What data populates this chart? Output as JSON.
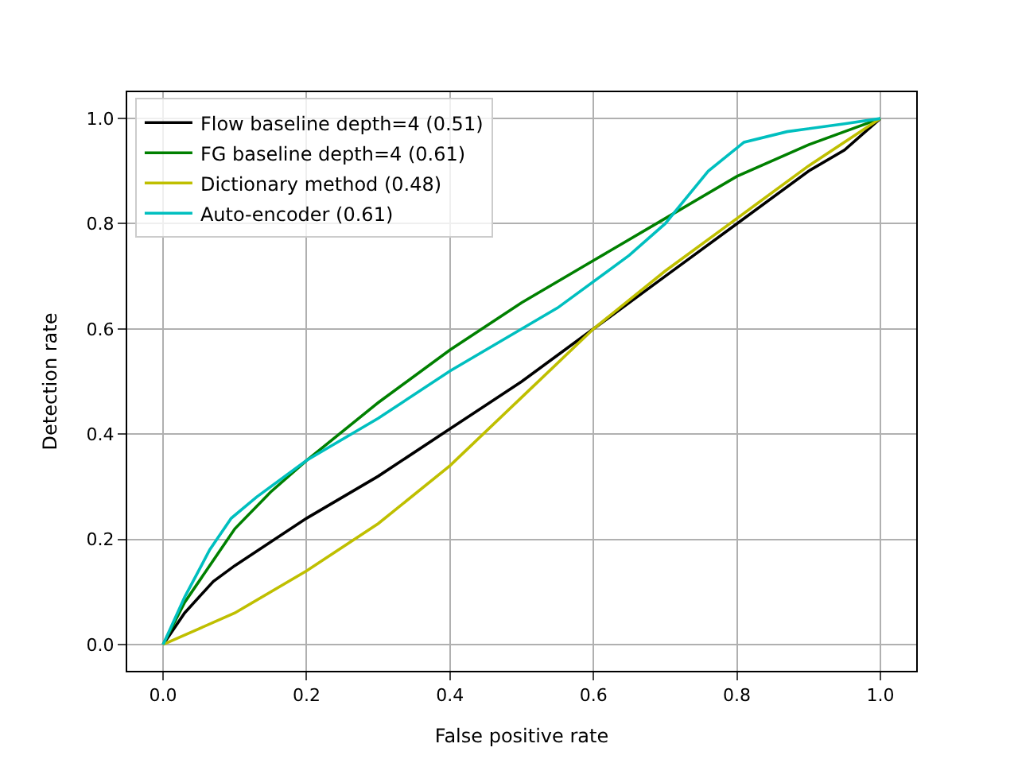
{
  "chart_data": {
    "type": "line",
    "xlabel": "False positive rate",
    "ylabel": "Detection rate",
    "xlim": [
      -0.05,
      1.05
    ],
    "ylim": [
      -0.05,
      1.05
    ],
    "xticks": [
      {
        "value": 0,
        "label": "0.0"
      },
      {
        "value": 0.2,
        "label": "0.2"
      },
      {
        "value": 0.4,
        "label": "0.4"
      },
      {
        "value": 0.6,
        "label": "0.6"
      },
      {
        "value": 0.8,
        "label": "0.8"
      },
      {
        "value": 1,
        "label": "1.0"
      }
    ],
    "yticks": [
      {
        "value": 0,
        "label": "0.0"
      },
      {
        "value": 0.2,
        "label": "0.2"
      },
      {
        "value": 0.4,
        "label": "0.4"
      },
      {
        "value": 0.6,
        "label": "0.6"
      },
      {
        "value": 0.8,
        "label": "0.8"
      },
      {
        "value": 1,
        "label": "1.0"
      }
    ],
    "grid": true,
    "legend": "top left",
    "marker": "none",
    "line_style": "solid",
    "series": [
      {
        "name": "Flow baseline depth=4 (0.51)",
        "color": "#000000",
        "x": [
          0,
          0.03,
          0.07,
          0.1,
          0.2,
          0.3,
          0.4,
          0.5,
          0.6,
          0.7,
          0.8,
          0.9,
          0.95,
          1
        ],
        "values": [
          0,
          0.06,
          0.12,
          0.15,
          0.24,
          0.32,
          0.41,
          0.5,
          0.6,
          0.7,
          0.8,
          0.9,
          0.94,
          1
        ]
      },
      {
        "name": "FG baseline depth=4 (0.61)",
        "color": "#008000",
        "x": [
          0,
          0.03,
          0.07,
          0.1,
          0.15,
          0.2,
          0.3,
          0.4,
          0.5,
          0.6,
          0.7,
          0.8,
          0.9,
          1
        ],
        "values": [
          0,
          0.08,
          0.16,
          0.22,
          0.29,
          0.35,
          0.46,
          0.56,
          0.65,
          0.73,
          0.81,
          0.89,
          0.95,
          1
        ]
      },
      {
        "name": "Dictionary method (0.48)",
        "color": "#bfbf00",
        "x": [
          0,
          0.05,
          0.1,
          0.2,
          0.3,
          0.4,
          0.5,
          0.6,
          0.7,
          0.8,
          0.9,
          1
        ],
        "values": [
          0,
          0.03,
          0.06,
          0.14,
          0.23,
          0.34,
          0.47,
          0.6,
          0.71,
          0.81,
          0.91,
          1
        ]
      },
      {
        "name": "Auto-encoder (0.61)",
        "color": "#00bfbf",
        "x": [
          0,
          0.03,
          0.065,
          0.095,
          0.13,
          0.2,
          0.3,
          0.4,
          0.5,
          0.55,
          0.65,
          0.7,
          0.76,
          0.81,
          0.87,
          0.95,
          1
        ],
        "values": [
          0,
          0.09,
          0.18,
          0.24,
          0.28,
          0.35,
          0.43,
          0.52,
          0.6,
          0.64,
          0.74,
          0.8,
          0.9,
          0.955,
          0.975,
          0.99,
          1
        ]
      }
    ]
  }
}
